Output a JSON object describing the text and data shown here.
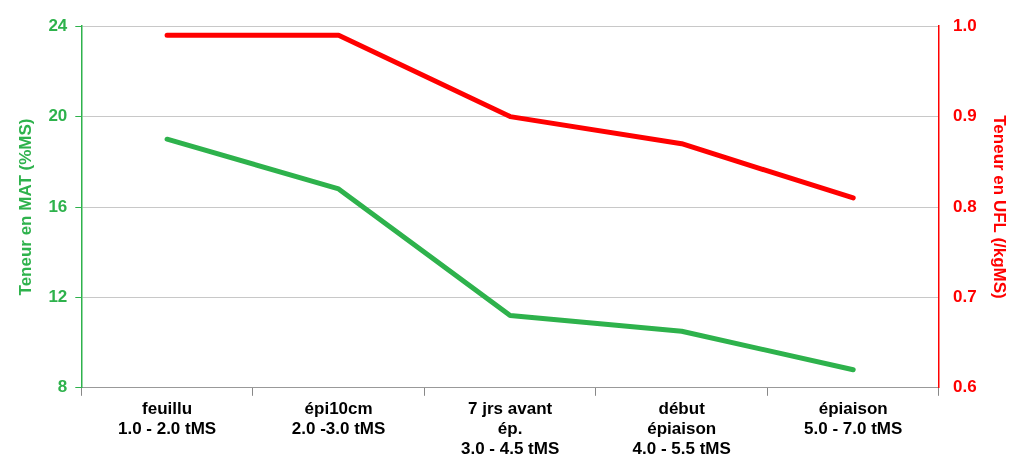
{
  "chart_data": {
    "type": "line",
    "ylabel": "Teneur en MAT (%MS)",
    "y2label": "Teneur en UFL (/kgMS)",
    "categories": [
      "feuillu\n1.0 - 2.0 tMS",
      "épi10cm\n2.0 -3.0 tMS",
      "7 jrs avant\nép.\n3.0 - 4.5 tMS",
      "début\népiaison\n4.0 - 5.5 tMS",
      "épiaison\n5.0 - 7.0 tMS"
    ],
    "series": [
      {
        "color": "#2eb24c",
        "values": [
          19.0,
          16.8,
          11.2,
          10.5,
          8.8
        ]
      },
      {
        "color": "#ff0000",
        "values": [
          0.99,
          0.99,
          0.9,
          0.87,
          0.81
        ],
        "axis": "y2"
      }
    ],
    "ylim": [
      8,
      24
    ],
    "yticks": [
      8,
      12,
      16,
      20,
      24
    ],
    "y2lim": [
      0.6,
      1.0
    ],
    "y2ticks": [
      {
        "value": 0.6,
        "label": "0.6"
      },
      {
        "value": 0.7,
        "label": "0.7"
      },
      {
        "value": 0.8,
        "label": "0.8"
      },
      {
        "value": 0.9,
        "label": "0.9"
      },
      {
        "value": 1.0,
        "label": "1.0"
      }
    ],
    "grid": "y",
    "legend": false,
    "marker": "none",
    "line_style": "solid"
  }
}
